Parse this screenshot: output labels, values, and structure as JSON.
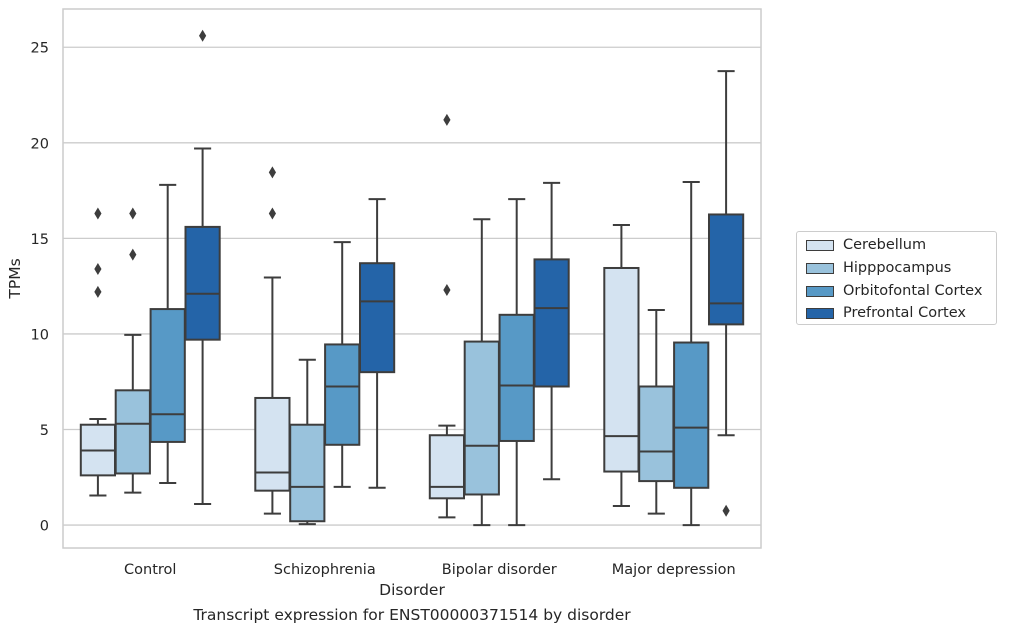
{
  "chart_data": {
    "type": "box",
    "xlabel": "Disorder",
    "ylabel": "TPMs",
    "caption": "Transcript expression for ENST00000371514 by disorder",
    "ylim": [
      -1.2,
      27
    ],
    "yticks": [
      0,
      5,
      10,
      15,
      20,
      25
    ],
    "grid": "horizontal",
    "legend_position": "right",
    "categories": [
      "Control",
      "Schizophrenia",
      "Bipolar disorder",
      "Major depression"
    ],
    "series": [
      {
        "name": "Cerebellum",
        "color": "#d4e3f1",
        "boxes": [
          {
            "whisker_low": 1.55,
            "q1": 2.6,
            "median": 3.9,
            "q3": 5.25,
            "whisker_high": 5.55,
            "outliers": [
              12.2,
              13.4,
              16.3
            ]
          },
          {
            "whisker_low": 0.6,
            "q1": 1.8,
            "median": 2.75,
            "q3": 6.65,
            "whisker_high": 12.95,
            "outliers": [
              16.3,
              18.45
            ]
          },
          {
            "whisker_low": 0.4,
            "q1": 1.4,
            "median": 2.0,
            "q3": 4.7,
            "whisker_high": 5.2,
            "outliers": [
              12.3,
              21.2
            ]
          },
          {
            "whisker_low": 1.0,
            "q1": 2.8,
            "median": 4.65,
            "q3": 13.45,
            "whisker_high": 15.7,
            "outliers": []
          }
        ]
      },
      {
        "name": "Hipppocampus",
        "color": "#99c2dc",
        "boxes": [
          {
            "whisker_low": 1.7,
            "q1": 2.7,
            "median": 5.3,
            "q3": 7.05,
            "whisker_high": 9.95,
            "outliers": [
              14.15,
              16.3
            ]
          },
          {
            "whisker_low": 0.05,
            "q1": 0.2,
            "median": 2.0,
            "q3": 5.25,
            "whisker_high": 8.65,
            "outliers": []
          },
          {
            "whisker_low": 0.0,
            "q1": 1.6,
            "median": 4.15,
            "q3": 9.6,
            "whisker_high": 16.0,
            "outliers": []
          },
          {
            "whisker_low": 0.6,
            "q1": 2.3,
            "median": 3.85,
            "q3": 7.25,
            "whisker_high": 11.25,
            "outliers": []
          }
        ]
      },
      {
        "name": "Orbitofontal Cortex",
        "color": "#5799c6",
        "boxes": [
          {
            "whisker_low": 2.2,
            "q1": 4.35,
            "median": 5.8,
            "q3": 11.3,
            "whisker_high": 17.8,
            "outliers": []
          },
          {
            "whisker_low": 2.0,
            "q1": 4.2,
            "median": 7.25,
            "q3": 9.45,
            "whisker_high": 14.8,
            "outliers": []
          },
          {
            "whisker_low": 0.0,
            "q1": 4.4,
            "median": 7.3,
            "q3": 11.0,
            "whisker_high": 17.05,
            "outliers": []
          },
          {
            "whisker_low": 0.0,
            "q1": 1.95,
            "median": 5.1,
            "q3": 9.55,
            "whisker_high": 17.95,
            "outliers": []
          }
        ]
      },
      {
        "name": "Prefrontal Cortex",
        "color": "#2464a8",
        "boxes": [
          {
            "whisker_low": 1.1,
            "q1": 9.7,
            "median": 12.1,
            "q3": 15.6,
            "whisker_high": 19.7,
            "outliers": [
              25.6
            ]
          },
          {
            "whisker_low": 1.95,
            "q1": 8.0,
            "median": 11.7,
            "q3": 13.7,
            "whisker_high": 17.05,
            "outliers": []
          },
          {
            "whisker_low": 2.4,
            "q1": 7.25,
            "median": 11.35,
            "q3": 13.9,
            "whisker_high": 17.9,
            "outliers": []
          },
          {
            "whisker_low": 4.7,
            "q1": 10.5,
            "median": 11.6,
            "q3": 16.25,
            "whisker_high": 23.75,
            "outliers": [
              0.75
            ]
          }
        ]
      }
    ]
  }
}
